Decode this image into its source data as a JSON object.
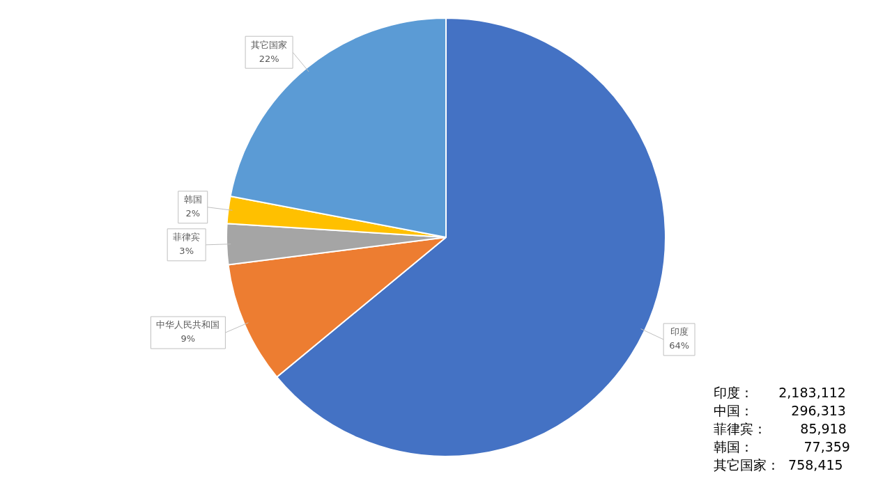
{
  "chart_data": {
    "type": "pie",
    "categories": [
      "印度",
      "中华人民共和国",
      "菲律宾",
      "韩国",
      "其它国家"
    ],
    "values": [
      64,
      9,
      3,
      2,
      22
    ],
    "colors": [
      "#4472c4",
      "#ed7d31",
      "#a5a5a5",
      "#ffc000",
      "#5b9bd5"
    ],
    "value_labels": [
      "64%",
      "9%",
      "3%",
      "2%",
      "22%"
    ],
    "legend": false,
    "annotations": [
      "印度：      2,183,112",
      "中国：         296,313",
      "菲律宾：        85,918",
      "韩国：            77,359",
      "其它国家：  758,415"
    ]
  }
}
